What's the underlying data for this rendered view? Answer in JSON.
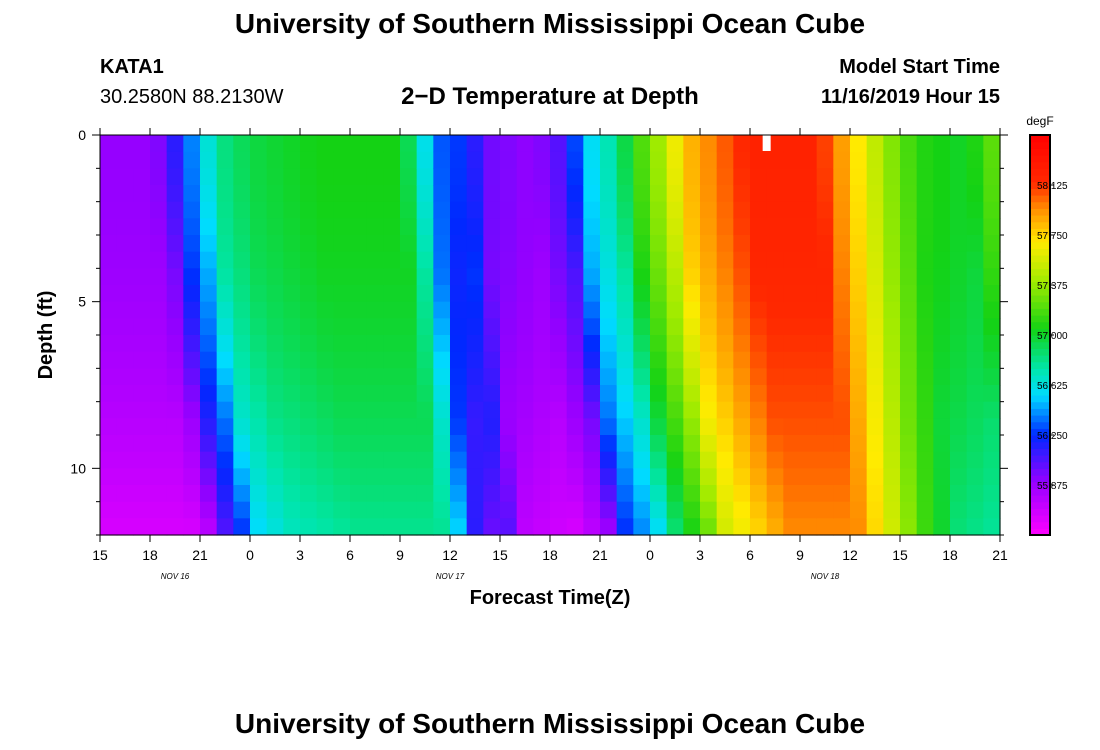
{
  "header": {
    "title": "University of Southern Mississippi Ocean Cube",
    "station_id": "KATA1",
    "station_coords": "30.2580N 88.2130W",
    "chart_title": "2−D Temperature at Depth",
    "model_start_label": "Model Start Time",
    "model_start_value": "11/16/2019 Hour 15"
  },
  "footer": {
    "title": "University of Southern Mississippi Ocean Cube"
  },
  "chart_data": {
    "type": "heatmap",
    "xlabel": "Forecast Time(Z)",
    "ylabel": "Depth (ft)",
    "x_tick_labels": [
      "15",
      "18",
      "21",
      "0",
      "3",
      "6",
      "9",
      "12",
      "15",
      "18",
      "21",
      "0",
      "3",
      "6",
      "9",
      "12",
      "15",
      "18",
      "21"
    ],
    "date_labels": [
      {
        "label": "NOV 16",
        "hour": 4.5
      },
      {
        "label": "NOV 17",
        "hour": 21
      },
      {
        "label": "NOV 18",
        "hour": 43.5
      }
    ],
    "xlim": [
      0,
      54
    ],
    "x_units": "hours since model start (11/16/2019 Hour 15)",
    "y_ticks": [
      0,
      5,
      10
    ],
    "ylim": [
      0,
      12
    ],
    "y_inverted": true,
    "colorbar": {
      "title": "degF",
      "ticks": [
        "58.125",
        "57.750",
        "57.375",
        "57.000",
        "56.625",
        "56.250",
        "55.875"
      ],
      "range": [
        55.5,
        58.5
      ]
    },
    "surface_profile_degF": [
      {
        "hour": 0,
        "t": 55.9
      },
      {
        "hour": 3,
        "t": 55.9
      },
      {
        "hour": 4,
        "t": 56.0
      },
      {
        "hour": 5,
        "t": 56.3
      },
      {
        "hour": 6,
        "t": 56.5
      },
      {
        "hour": 7,
        "t": 56.8
      },
      {
        "hour": 9,
        "t": 56.95
      },
      {
        "hour": 13,
        "t": 57.05
      },
      {
        "hour": 18,
        "t": 57.05
      },
      {
        "hour": 19,
        "t": 56.8
      },
      {
        "hour": 20,
        "t": 56.4
      },
      {
        "hour": 21,
        "t": 56.25
      },
      {
        "hour": 22,
        "t": 56.3
      },
      {
        "hour": 23,
        "t": 56.0
      },
      {
        "hour": 26,
        "t": 55.9
      },
      {
        "hour": 28,
        "t": 56.1
      },
      {
        "hour": 29,
        "t": 56.5
      },
      {
        "hour": 31,
        "t": 56.8
      },
      {
        "hour": 32,
        "t": 57.1
      },
      {
        "hour": 34,
        "t": 57.5
      },
      {
        "hour": 35,
        "t": 57.8
      },
      {
        "hour": 37,
        "t": 58.0
      },
      {
        "hour": 39,
        "t": 58.2
      },
      {
        "hour": 43,
        "t": 58.2
      },
      {
        "hour": 45,
        "t": 57.8
      },
      {
        "hour": 47,
        "t": 57.4
      },
      {
        "hour": 49,
        "t": 57.1
      },
      {
        "hour": 52,
        "t": 57.0
      },
      {
        "hour": 54,
        "t": 57.3
      }
    ],
    "depth_lag_hours_at_bottom": 2.5,
    "surface_marker_hour": 40
  }
}
